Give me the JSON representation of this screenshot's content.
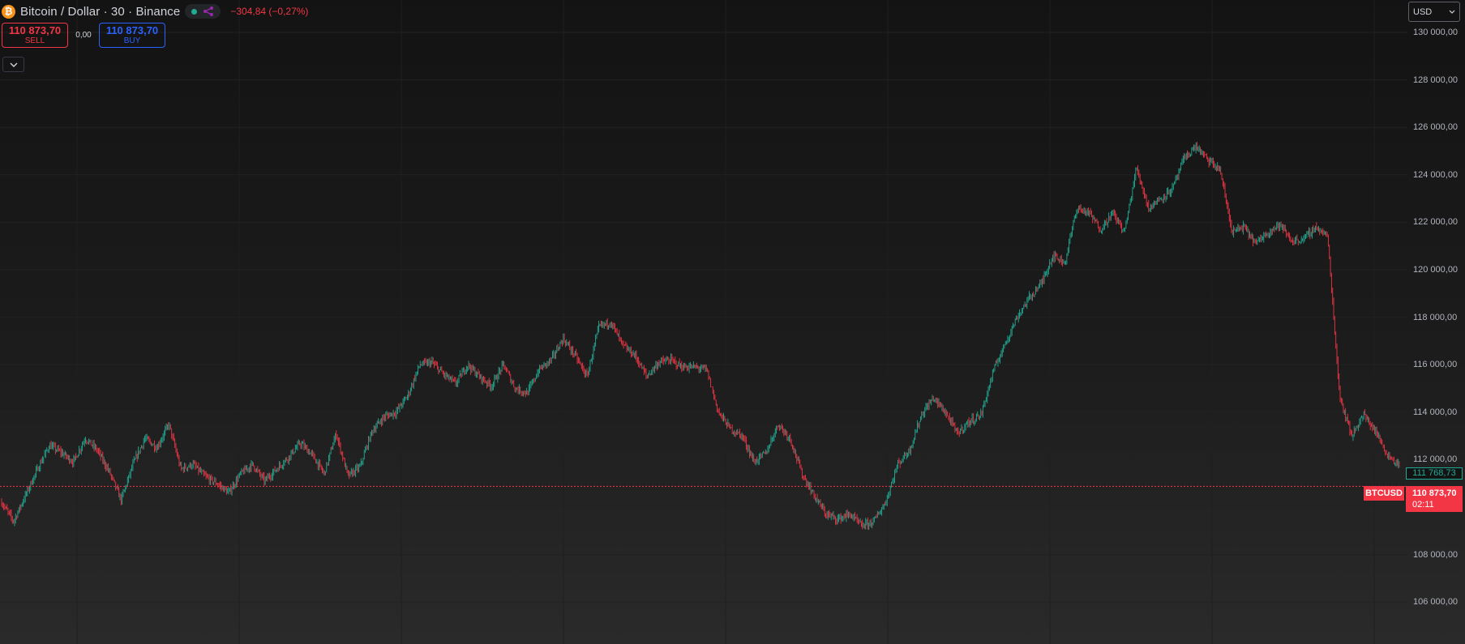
{
  "header": {
    "symbol_title": "Bitcoin / Dollar · 30 · Binance",
    "icon": "bitcoin-icon",
    "change_text": "−304,84 (−0,27%)"
  },
  "trade": {
    "sell_price": "110 873,70",
    "sell_label": "SELL",
    "spread": "0,00",
    "buy_price": "110 873,70",
    "buy_label": "BUY"
  },
  "axis": {
    "currency": "USD",
    "ticks": [
      "130 000,00",
      "128 000,00",
      "126 000,00",
      "124 000,00",
      "122 000,00",
      "120 000,00",
      "118 000,00",
      "116 000,00",
      "114 000,00",
      "112 000,00",
      "110 000,00",
      "108 000,00",
      "106 000,00"
    ]
  },
  "badges": {
    "last_close": "111 768,73",
    "symbol": "BTCUSD",
    "price": "110 873,70",
    "countdown": "02:11"
  },
  "colors": {
    "up": "#22ab94",
    "down": "#f23645",
    "buy": "#2962ff"
  },
  "chart_data": {
    "type": "line",
    "ylim": [
      105000,
      131000
    ],
    "grid": true,
    "current_price": 110873.7,
    "series": [
      {
        "values": [
          110200,
          109400,
          110500,
          111600,
          112600,
          112300,
          111900,
          112900,
          112400,
          111500,
          110300,
          111800,
          112900,
          112500,
          113500,
          111600,
          111800,
          111300,
          111000,
          110600,
          111400,
          111800,
          111100,
          111600,
          112100,
          112700,
          112200,
          111400,
          113100,
          111300,
          111700,
          113200,
          113800,
          114000,
          114700,
          116000,
          116100,
          115600,
          115200,
          116000,
          115500,
          115100,
          116000,
          115000,
          114800,
          115800,
          116200,
          117100,
          116400,
          115500,
          117600,
          117800,
          116800,
          116400,
          115500,
          116100,
          116200,
          115900,
          115900,
          115800,
          114000,
          113300,
          113000,
          111900,
          112300,
          113500,
          112900,
          111400,
          110500,
          109700,
          109500,
          109700,
          109200,
          109400,
          110200,
          111800,
          112400,
          113900,
          114600,
          114000,
          113100,
          113600,
          113900,
          115700,
          116900,
          118000,
          118800,
          119400,
          120600,
          120300,
          122600,
          122400,
          121700,
          122400,
          121600,
          124300,
          122600,
          123000,
          123400,
          124700,
          125200,
          124600,
          124200,
          121600,
          121800,
          121100,
          121600,
          121900,
          121200,
          121300,
          121800,
          121400,
          114700,
          113000,
          113900,
          113200,
          112200,
          111768.73
        ]
      }
    ]
  }
}
